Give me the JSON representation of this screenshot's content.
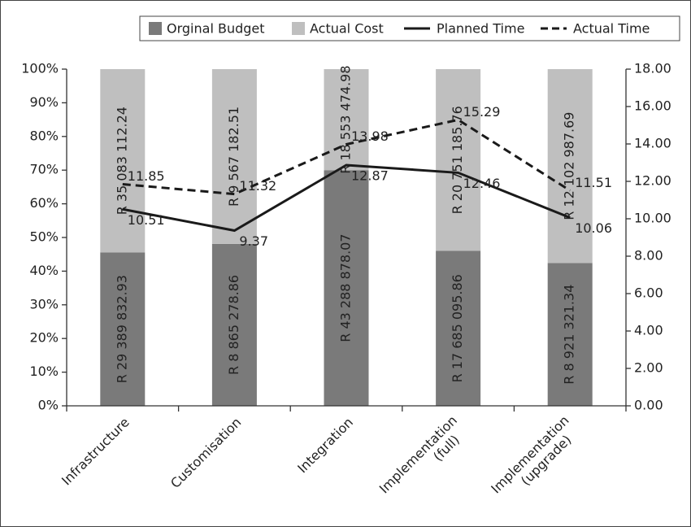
{
  "chart_data": {
    "type": "bar",
    "stacking": "percent",
    "categories": [
      "Infrastructure",
      "Customisation",
      "Integration",
      "Implementation (full)",
      "Implementation (upgrade)"
    ],
    "series": [
      {
        "name": "Orginal Budget",
        "color": "#7a7a7a",
        "values": [
          29389832.93,
          8865278.86,
          43288878.07,
          17685095.86,
          8921321.34
        ],
        "value_labels": [
          "R 29 389 832.93",
          "R 8 865 278.86",
          "R 43 288 878.07",
          "R 17 685 095.86",
          "R 8 921 321.34"
        ]
      },
      {
        "name": "Actual Cost",
        "color": "#bfbfbf",
        "values": [
          35083112.24,
          9567182.51,
          18553474.98,
          20751185.76,
          12102987.69
        ],
        "value_labels": [
          "R 35 083 112.24",
          "R 9 567 182.51",
          "R 18 553 474.98",
          "R 20 751 185.76",
          "R 12 102 987.69"
        ]
      },
      {
        "name": "Planned Time",
        "type": "line",
        "axis": "y2",
        "color": "#1a1a1a",
        "dash": "solid",
        "values": [
          10.51,
          9.37,
          12.87,
          12.46,
          10.06
        ]
      },
      {
        "name": "Actual Time",
        "type": "line",
        "axis": "y2",
        "color": "#1a1a1a",
        "dash": "dashed",
        "values": [
          11.85,
          11.32,
          13.98,
          15.29,
          11.51
        ]
      }
    ],
    "ylim": [
      0,
      100
    ],
    "yticks": [
      {
        "value": 0,
        "label": "0%"
      },
      {
        "value": 10,
        "label": "10%"
      },
      {
        "value": 20,
        "label": "20%"
      },
      {
        "value": 30,
        "label": "30%"
      },
      {
        "value": 40,
        "label": "40%"
      },
      {
        "value": 50,
        "label": "50%"
      },
      {
        "value": 60,
        "label": "60%"
      },
      {
        "value": 70,
        "label": "70%"
      },
      {
        "value": 80,
        "label": "80%"
      },
      {
        "value": 90,
        "label": "90%"
      },
      {
        "value": 100,
        "label": "100%"
      }
    ],
    "y2lim": [
      0,
      18
    ],
    "y2ticks": [
      {
        "value": 0,
        "label": "0.00"
      },
      {
        "value": 2,
        "label": "2.00"
      },
      {
        "value": 4,
        "label": "4.00"
      },
      {
        "value": 6,
        "label": "6.00"
      },
      {
        "value": 8,
        "label": "8.00"
      },
      {
        "value": 10,
        "label": "10.00"
      },
      {
        "value": 12,
        "label": "12.00"
      },
      {
        "value": 14,
        "label": "14.00"
      },
      {
        "value": 16,
        "label": "16.00"
      },
      {
        "value": 18,
        "label": "18.00"
      }
    ],
    "legend": "top-right",
    "grid": false
  }
}
